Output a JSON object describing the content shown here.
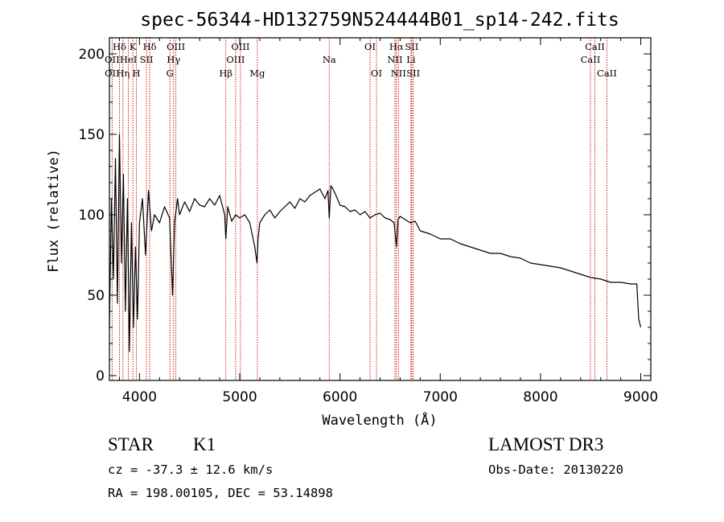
{
  "chart_data": {
    "type": "line",
    "title": "spec-56344-HD132759N524444B01_sp14-242.fits",
    "xlabel": "Wavelength (Å)",
    "ylabel": "Flux (relative)",
    "xlim": [
      3700,
      9100
    ],
    "ylim": [
      -3,
      210
    ],
    "xticks": [
      4000,
      5000,
      6000,
      7000,
      8000,
      9000
    ],
    "yticks": [
      0,
      50,
      100,
      150,
      200
    ],
    "series": [
      {
        "name": "flux",
        "x": [
          3700,
          3720,
          3740,
          3760,
          3780,
          3800,
          3820,
          3840,
          3860,
          3880,
          3900,
          3920,
          3940,
          3960,
          3980,
          4000,
          4030,
          4060,
          4090,
          4120,
          4150,
          4200,
          4250,
          4300,
          4330,
          4350,
          4380,
          4400,
          4450,
          4500,
          4550,
          4600,
          4650,
          4700,
          4750,
          4800,
          4850,
          4861,
          4880,
          4920,
          4960,
          5000,
          5050,
          5100,
          5150,
          5172,
          5183,
          5200,
          5250,
          5300,
          5350,
          5400,
          5450,
          5500,
          5550,
          5600,
          5650,
          5700,
          5750,
          5800,
          5850,
          5880,
          5893,
          5910,
          5930,
          5960,
          6000,
          6050,
          6100,
          6150,
          6200,
          6250,
          6300,
          6350,
          6400,
          6450,
          6500,
          6540,
          6563,
          6580,
          6600,
          6650,
          6700,
          6750,
          6800,
          6900,
          7000,
          7100,
          7200,
          7300,
          7400,
          7500,
          7600,
          7700,
          7800,
          7900,
          8000,
          8100,
          8200,
          8300,
          8400,
          8500,
          8600,
          8700,
          8800,
          8900,
          8960,
          8980,
          9000
        ],
        "y": [
          30,
          110,
          60,
          135,
          45,
          150,
          70,
          125,
          40,
          110,
          15,
          95,
          30,
          80,
          35,
          95,
          110,
          75,
          115,
          90,
          100,
          95,
          105,
          98,
          50,
          95,
          110,
          100,
          108,
          102,
          110,
          106,
          105,
          110,
          106,
          112,
          100,
          85,
          105,
          96,
          100,
          98,
          100,
          95,
          80,
          70,
          85,
          95,
          100,
          103,
          98,
          102,
          105,
          108,
          104,
          110,
          108,
          112,
          114,
          116,
          110,
          115,
          98,
          118,
          116,
          112,
          106,
          105,
          102,
          103,
          100,
          102,
          98,
          100,
          101,
          98,
          97,
          95,
          80,
          97,
          99,
          97,
          95,
          96,
          90,
          88,
          85,
          85,
          82,
          80,
          78,
          76,
          76,
          74,
          73,
          70,
          69,
          68,
          67,
          65,
          63,
          61,
          60,
          58,
          58,
          57,
          57,
          35,
          30
        ]
      }
    ],
    "spectral_lines": [
      {
        "name": "Hδ",
        "wavelength": 3800,
        "row": 1
      },
      {
        "name": "OII",
        "wavelength": 3727,
        "row": 2
      },
      {
        "name": "OII",
        "wavelength": 3727,
        "row": 3
      },
      {
        "name": "Hη",
        "wavelength": 3835,
        "row": 3
      },
      {
        "name": "K",
        "wavelength": 3934,
        "row": 1
      },
      {
        "name": "HeI",
        "wavelength": 3889,
        "row": 2
      },
      {
        "name": "H",
        "wavelength": 3969,
        "row": 3
      },
      {
        "name": "Hδ",
        "wavelength": 4102,
        "row": 1
      },
      {
        "name": "SII",
        "wavelength": 4070,
        "row": 2
      },
      {
        "name": "OIII",
        "wavelength": 4363,
        "row": 1
      },
      {
        "name": "Hγ",
        "wavelength": 4340,
        "row": 2
      },
      {
        "name": "G",
        "wavelength": 4304,
        "row": 3
      },
      {
        "name": "Hβ",
        "wavelength": 4861,
        "row": 3
      },
      {
        "name": "OIII",
        "wavelength": 5007,
        "row": 1
      },
      {
        "name": "OIII",
        "wavelength": 4959,
        "row": 2
      },
      {
        "name": "Mg",
        "wavelength": 5175,
        "row": 3
      },
      {
        "name": "Na",
        "wavelength": 5893,
        "row": 2
      },
      {
        "name": "OI",
        "wavelength": 6300,
        "row": 1
      },
      {
        "name": "OI",
        "wavelength": 6364,
        "row": 3
      },
      {
        "name": "Hα",
        "wavelength": 6563,
        "row": 1
      },
      {
        "name": "NII",
        "wavelength": 6548,
        "row": 2
      },
      {
        "name": "NII",
        "wavelength": 6583,
        "row": 3
      },
      {
        "name": "SII",
        "wavelength": 6716,
        "row": 1
      },
      {
        "name": "Li",
        "wavelength": 6708,
        "row": 2
      },
      {
        "name": "SII",
        "wavelength": 6731,
        "row": 3
      },
      {
        "name": "CaII",
        "wavelength": 8542,
        "row": 1
      },
      {
        "name": "CaII",
        "wavelength": 8498,
        "row": 2
      },
      {
        "name": "CaII",
        "wavelength": 8662,
        "row": 3
      }
    ]
  },
  "info": {
    "class": "STAR",
    "subclass": "K1",
    "survey": "LAMOST DR3",
    "redshift": "cz = -37.3 ± 12.6 km/s",
    "obs_date": "Obs-Date: 20130220",
    "coordinates": "RA = 198.00105, DEC =  53.14898"
  },
  "colors": {
    "line_marker": "#cc0000",
    "spectrum": "#000000"
  }
}
